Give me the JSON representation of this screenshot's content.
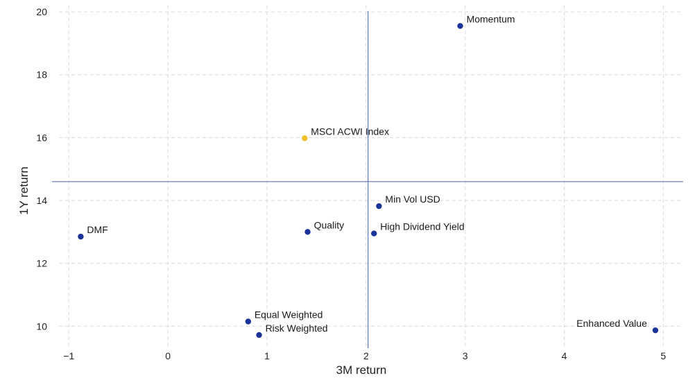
{
  "chart_data": {
    "type": "scatter",
    "title": "",
    "xlabel": "3M return",
    "ylabel": "1Y return",
    "xlim": [
      -1.1,
      5.2
    ],
    "ylim": [
      9.3,
      20.2
    ],
    "x_ticks": [
      -1,
      0,
      1,
      2,
      3,
      4,
      5
    ],
    "x_tick_labels": [
      "−1",
      "0",
      "1",
      "2",
      "3",
      "4",
      "5"
    ],
    "y_ticks": [
      10,
      12,
      14,
      16,
      18,
      20
    ],
    "y_tick_labels": [
      "10",
      "12",
      "14",
      "16",
      "18",
      "20"
    ],
    "grid": true,
    "reference_lines": {
      "x": 2.02,
      "y": 14.6
    },
    "points": [
      {
        "label": "Momentum",
        "x": 2.95,
        "y": 19.55,
        "color": "#1a3399",
        "label_side": "right"
      },
      {
        "label": "MSCI ACWI Index",
        "x": 1.38,
        "y": 15.98,
        "color": "#f2c12e",
        "label_side": "right"
      },
      {
        "label": "Min Vol USD",
        "x": 2.13,
        "y": 13.82,
        "color": "#1a3399",
        "label_side": "right"
      },
      {
        "label": "Quality",
        "x": 1.41,
        "y": 13.0,
        "color": "#1a3399",
        "label_side": "right"
      },
      {
        "label": "High Dividend Yield",
        "x": 2.08,
        "y": 12.95,
        "color": "#1a3399",
        "label_side": "right"
      },
      {
        "label": "DMF",
        "x": -0.88,
        "y": 12.85,
        "color": "#1a3399",
        "label_side": "right"
      },
      {
        "label": "Equal Weighted",
        "x": 0.81,
        "y": 10.15,
        "color": "#1a3399",
        "label_side": "right"
      },
      {
        "label": "Risk Weighted",
        "x": 0.92,
        "y": 9.72,
        "color": "#1a3399",
        "label_side": "right"
      },
      {
        "label": "Enhanced Value",
        "x": 4.92,
        "y": 9.87,
        "color": "#1a3399",
        "label_side": "left"
      }
    ]
  }
}
